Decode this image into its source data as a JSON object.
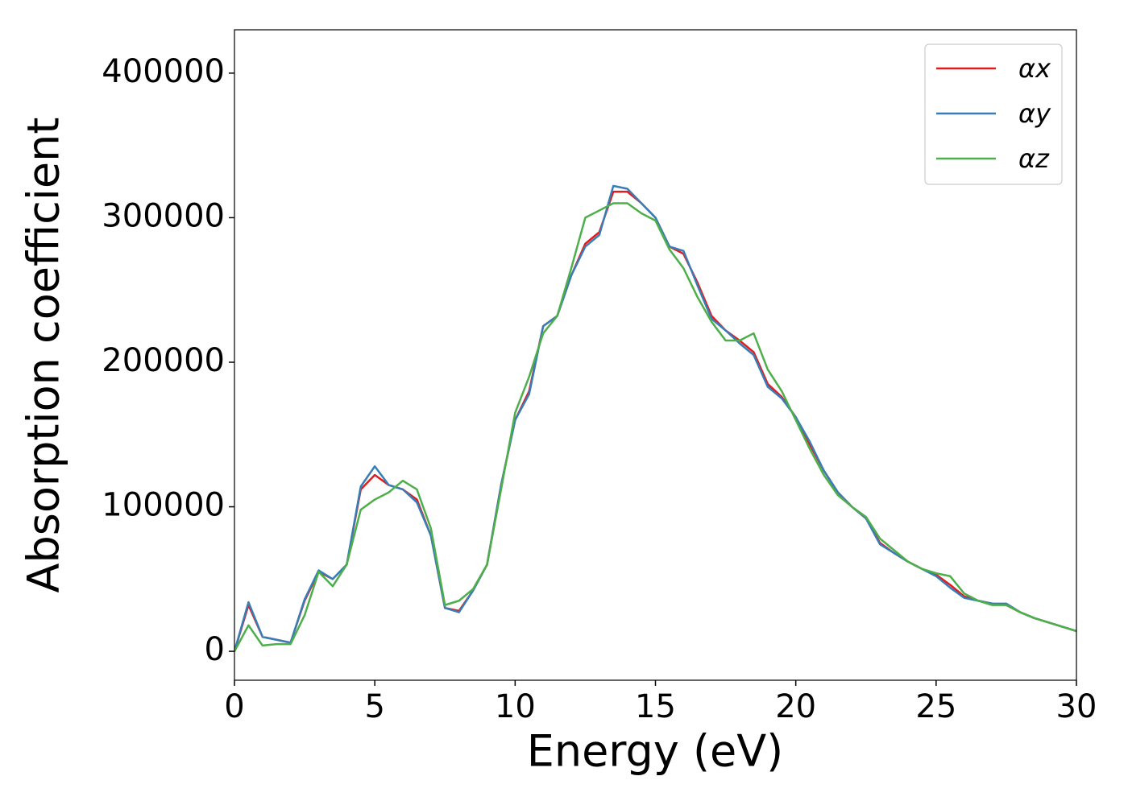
{
  "chart_data": {
    "type": "line",
    "xlabel": "Energy (eV)",
    "ylabel": "Absorption coefficient",
    "x": [
      0,
      0.5,
      1,
      1.5,
      2,
      2.5,
      3,
      3.5,
      4,
      4.5,
      5,
      5.5,
      6,
      6.5,
      7,
      7.5,
      8,
      8.5,
      9,
      9.5,
      10,
      10.5,
      11,
      11.5,
      12,
      12.5,
      13,
      13.5,
      14,
      14.5,
      15,
      15.5,
      16,
      16.5,
      17,
      17.5,
      18,
      18.5,
      19,
      19.5,
      20,
      20.5,
      21,
      21.5,
      22,
      22.5,
      23,
      23.5,
      24,
      24.5,
      25,
      25.5,
      26,
      26.5,
      27,
      27.5,
      28,
      28.5,
      29,
      29.5,
      30
    ],
    "series": [
      {
        "name": "αx",
        "color": "#e41a1c",
        "values": [
          0,
          32000,
          10000,
          8000,
          6000,
          35000,
          55000,
          50000,
          60000,
          112000,
          122000,
          115000,
          112000,
          105000,
          80000,
          30000,
          28000,
          42000,
          60000,
          115000,
          160000,
          180000,
          225000,
          232000,
          260000,
          282000,
          290000,
          318000,
          318000,
          310000,
          300000,
          280000,
          275000,
          255000,
          232000,
          222000,
          215000,
          207000,
          185000,
          176000,
          162000,
          143000,
          125000,
          110000,
          100000,
          92000,
          75000,
          68000,
          62000,
          57000,
          53000,
          46000,
          38000,
          35000,
          33000,
          32000,
          27000,
          23000,
          20000,
          17000,
          14000
        ]
      },
      {
        "name": "αy",
        "color": "#377eb8",
        "values": [
          0,
          34000,
          10000,
          8000,
          6000,
          36000,
          56000,
          50000,
          60000,
          114000,
          128000,
          115000,
          112000,
          103000,
          80000,
          30000,
          27000,
          42000,
          60000,
          115000,
          160000,
          178000,
          225000,
          232000,
          260000,
          280000,
          288000,
          322000,
          320000,
          310000,
          300000,
          280000,
          277000,
          253000,
          230000,
          222000,
          213000,
          205000,
          183000,
          175000,
          162000,
          145000,
          125000,
          110000,
          100000,
          92000,
          74000,
          68000,
          62000,
          57000,
          52000,
          44000,
          37000,
          35000,
          33000,
          33000,
          27000,
          23000,
          20000,
          17000,
          14000
        ]
      },
      {
        "name": "αz",
        "color": "#4daf4a",
        "values": [
          0,
          18000,
          4000,
          5000,
          5000,
          25000,
          55000,
          45000,
          60000,
          98000,
          105000,
          110000,
          118000,
          112000,
          85000,
          32000,
          35000,
          43000,
          60000,
          112000,
          165000,
          190000,
          220000,
          232000,
          265000,
          300000,
          305000,
          310000,
          310000,
          303000,
          298000,
          278000,
          265000,
          245000,
          228000,
          215000,
          215000,
          220000,
          195000,
          180000,
          160000,
          140000,
          122000,
          108000,
          100000,
          93000,
          78000,
          70000,
          62000,
          57000,
          54000,
          52000,
          40000,
          35000,
          32000,
          32000,
          27000,
          23000,
          20000,
          17000,
          14000
        ]
      }
    ],
    "xlim": [
      0,
      30
    ],
    "xticks": [
      0,
      5,
      10,
      15,
      20,
      25,
      30
    ],
    "ylim": [
      -20000,
      430000
    ],
    "yticks": [
      0,
      100000,
      200000,
      300000,
      400000
    ],
    "legend": "upper right",
    "grid": false
  }
}
